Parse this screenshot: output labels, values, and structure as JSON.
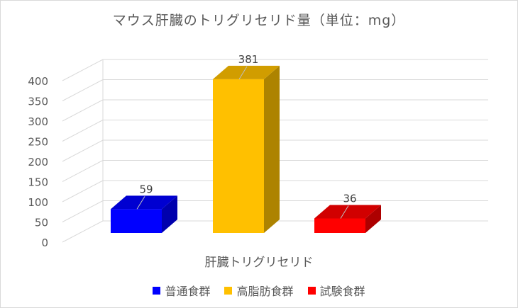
{
  "chart_data": {
    "type": "bar",
    "title": "マウス肝臓のトリグリセリド量（単位：mg）",
    "xlabel": "肝臓トリグリセリド",
    "ylabel": "",
    "categories": [
      "肝臓トリグリセリド"
    ],
    "series": [
      {
        "name": "普通食群",
        "values": [
          59
        ],
        "color": "#0000ff"
      },
      {
        "name": "高脂肪食群",
        "values": [
          381
        ],
        "color": "#ffc000"
      },
      {
        "name": "試験食群",
        "values": [
          36
        ],
        "color": "#ff0000"
      }
    ],
    "ylim": [
      0,
      400
    ],
    "yticks": [
      "0",
      "50",
      "100",
      "150",
      "200",
      "250",
      "300",
      "350",
      "400"
    ],
    "data_labels": [
      "59",
      "381",
      "36"
    ],
    "grid": true,
    "legend_position": "bottom",
    "style": "3d-column"
  }
}
